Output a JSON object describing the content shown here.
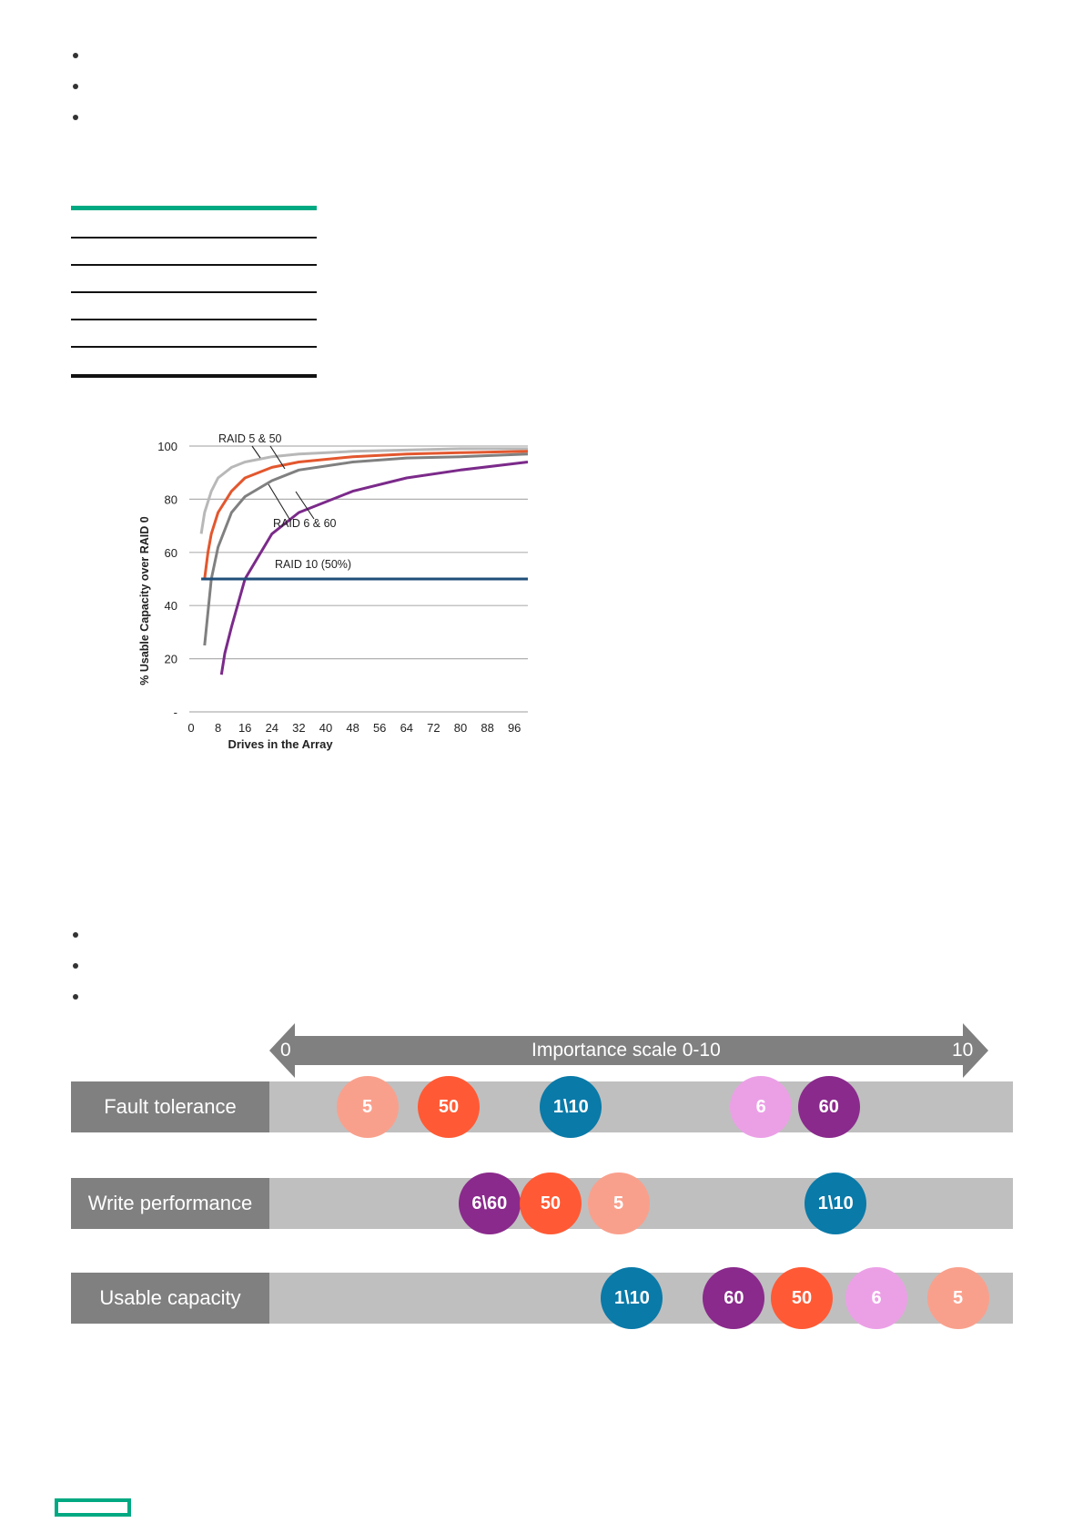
{
  "chart_data": {
    "type": "line",
    "title": "",
    "xlabel": "Drives in the Array",
    "ylabel": "% Usable Capacity  over RAID 0",
    "x_ticks": [
      "0",
      "8",
      "16",
      "24",
      "32",
      "40",
      "48",
      "56",
      "64",
      "72",
      "80",
      "88",
      "96"
    ],
    "y_ticks": [
      "-",
      "20",
      "40",
      "60",
      "80",
      "100"
    ],
    "xlim": [
      0,
      100
    ],
    "ylim": [
      0,
      100
    ],
    "grid": true,
    "series": [
      {
        "label": "RAID 5 & 50",
        "color": "#b8b8b8",
        "x": [
          3,
          4,
          6,
          8,
          12,
          16,
          24,
          32,
          48,
          64,
          80,
          100
        ],
        "y": [
          67,
          75,
          83,
          88,
          92,
          94,
          96,
          97,
          98,
          98.5,
          99,
          99
        ]
      },
      {
        "label": "RAID 5 & 50",
        "color": "#e3572e",
        "x": [
          4,
          5,
          6,
          8,
          12,
          16,
          24,
          32,
          48,
          64,
          80,
          100
        ],
        "y": [
          50,
          60,
          67,
          75,
          83,
          88,
          92,
          94,
          96,
          97,
          97.5,
          98
        ]
      },
      {
        "label": "RAID 6 & 60",
        "color": "#808080",
        "x": [
          4,
          6,
          8,
          12,
          16,
          24,
          32,
          48,
          64,
          80,
          100
        ],
        "y": [
          25,
          50,
          62,
          75,
          81,
          87,
          91,
          94,
          95.5,
          96,
          97
        ]
      },
      {
        "label": "RAID 6 & 60",
        "color": "#7b2a8a",
        "x": [
          9,
          10,
          12,
          16,
          24,
          32,
          48,
          64,
          80,
          100
        ],
        "y": [
          14,
          22,
          32,
          50,
          67,
          75,
          83,
          88,
          91,
          94
        ]
      },
      {
        "label": "RAID 10 (50%)",
        "color": "#1f4e79",
        "x": [
          3,
          100
        ],
        "y": [
          50,
          50
        ]
      }
    ],
    "annotations": [
      "RAID 5 & 50",
      "RAID 6 & 60",
      "RAID 10 (50%)"
    ]
  },
  "scale": {
    "title": "Importance scale 0-10",
    "min_label": "0",
    "max_label": "10",
    "arrow_color": "#808080"
  },
  "rows": [
    {
      "label": "Fault tolerance",
      "bubbles": [
        {
          "text": "5",
          "pos": 1.2,
          "color": "#f9a08c"
        },
        {
          "text": "50",
          "pos": 2.4,
          "color": "#ff5a35"
        },
        {
          "text": "1\\10",
          "pos": 4.2,
          "color": "#0a7aa8"
        },
        {
          "text": "6",
          "pos": 7.0,
          "color": "#eba0e6"
        },
        {
          "text": "60",
          "pos": 8.0,
          "color": "#8a2a8c"
        }
      ]
    },
    {
      "label": "Write performance",
      "bubbles": [
        {
          "text": "6\\60",
          "pos": 3.0,
          "color": "#8a2a8c"
        },
        {
          "text": "50",
          "pos": 3.9,
          "color": "#ff5a35"
        },
        {
          "text": "5",
          "pos": 4.9,
          "color": "#f9a08c"
        },
        {
          "text": "1\\10",
          "pos": 8.1,
          "color": "#0a7aa8"
        }
      ]
    },
    {
      "label": "Usable capacity",
      "bubbles": [
        {
          "text": "1\\10",
          "pos": 5.1,
          "color": "#0a7aa8"
        },
        {
          "text": "60",
          "pos": 6.6,
          "color": "#8a2a8c"
        },
        {
          "text": "50",
          "pos": 7.6,
          "color": "#ff5a35"
        },
        {
          "text": "6",
          "pos": 8.7,
          "color": "#eba0e6"
        },
        {
          "text": "5",
          "pos": 9.9,
          "color": "#f9a08c"
        }
      ]
    }
  ],
  "brand_color": "#01a982"
}
